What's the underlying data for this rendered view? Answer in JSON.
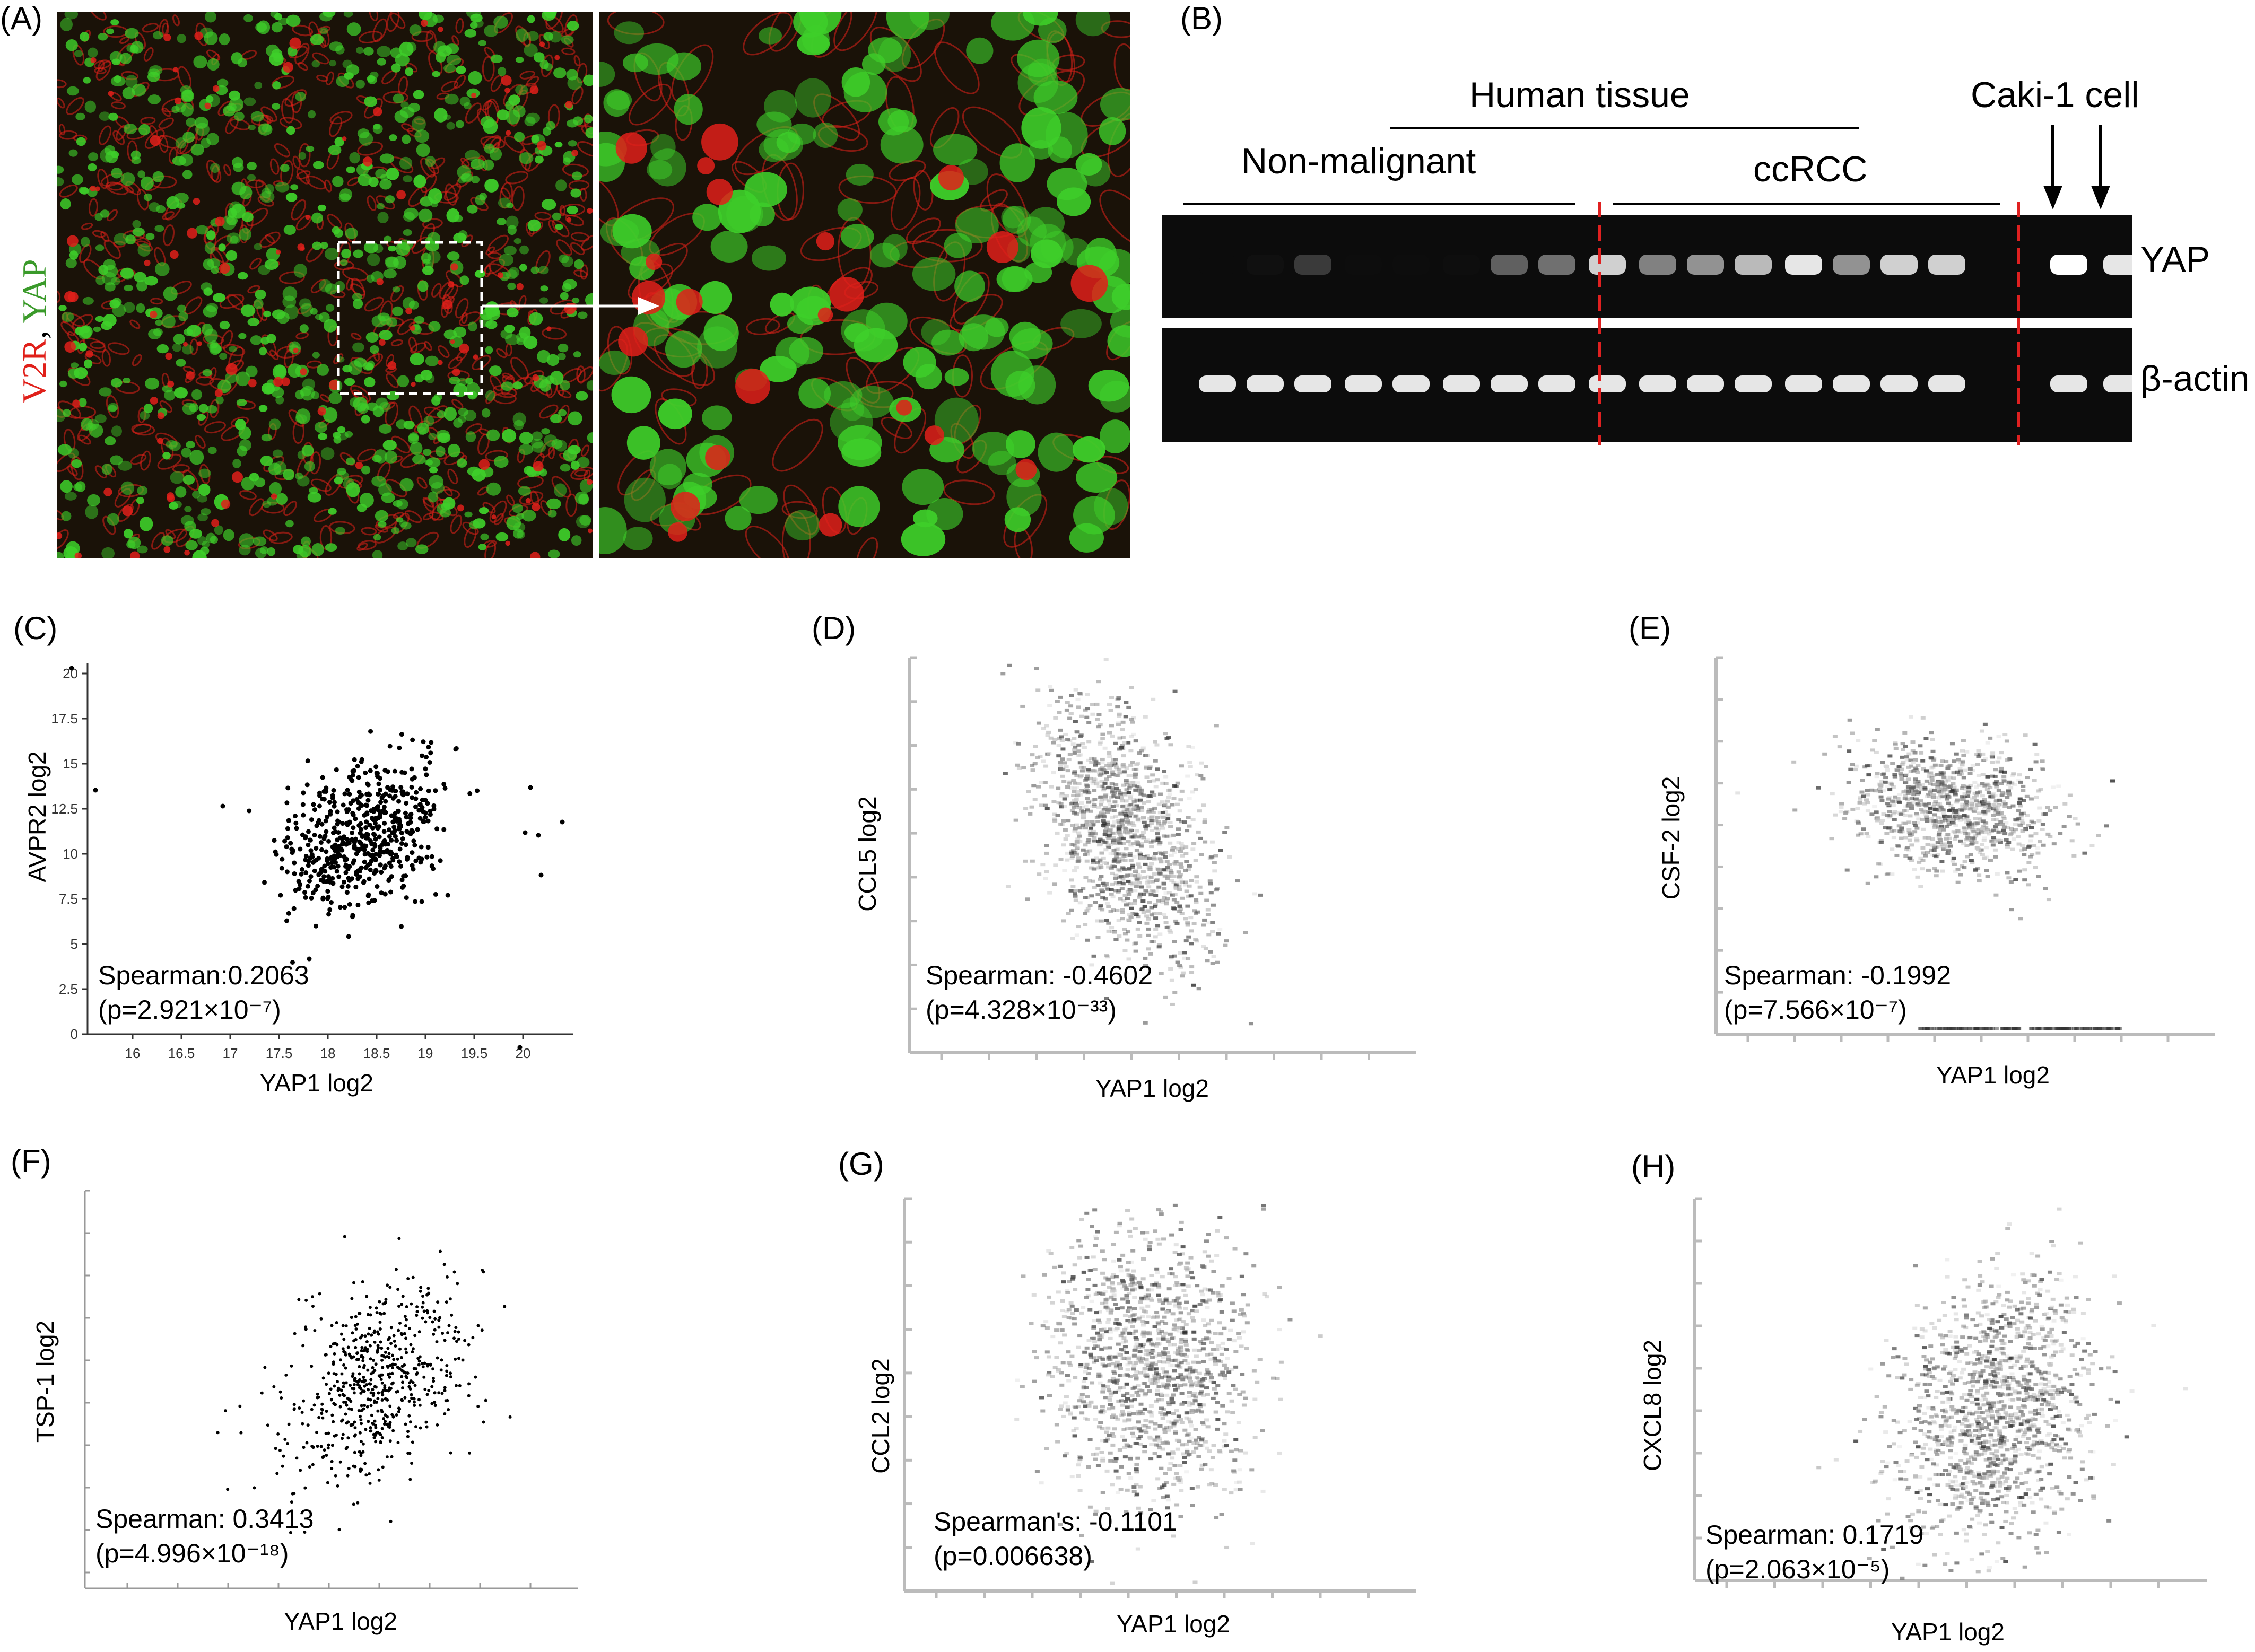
{
  "panels": {
    "A": {
      "label": "(A)",
      "stain_red": "V2R",
      "stain_sep": ", ",
      "stain_green": "YAP",
      "colors": {
        "red": "#e0201a",
        "green": "#3ecf2a",
        "bg": "#1a1208"
      }
    },
    "B": {
      "label": "(B)",
      "human_tissue": "Human tissue",
      "non_malignant": "Non-malignant",
      "ccrcc": "ccRCC",
      "caki": "Caki-1 cell",
      "yap": "YAP",
      "actin": "β-actin",
      "yap_band_intensity": [
        0.05,
        0.15,
        0.45,
        0.08,
        0.08,
        0.1,
        0.6,
        0.65,
        0.9,
        0.7,
        0.75,
        0.85,
        0.95,
        0.75,
        0.9,
        0.9,
        1.0,
        0.95
      ],
      "actin_band_intensity": [
        0.95,
        0.95,
        0.95,
        0.95,
        0.95,
        0.95,
        0.95,
        0.95,
        0.95,
        0.95,
        0.95,
        0.95,
        0.95,
        0.95,
        0.95,
        0.95,
        0.95,
        0.95
      ]
    },
    "C": {
      "label": "(C)",
      "ylabel": "AVPR2 log2",
      "xlabel": "YAP1 log2",
      "stat": "Spearman:0.2063",
      "pval": "(p=2.921×10⁻⁷)",
      "yticks": [
        "0",
        "2.5",
        "5",
        "7.5",
        "10",
        "12.5",
        "15",
        "17.5",
        "20"
      ],
      "xticks": [
        "16",
        "16.5",
        "17",
        "17.5",
        "18",
        "18.5",
        "19",
        "19.5",
        "20"
      ]
    },
    "D": {
      "label": "(D)",
      "ylabel": "CCL5 log2",
      "xlabel": "YAP1 log2",
      "stat": "Spearman: -0.4602",
      "pval": "(p=4.328×10⁻³³)"
    },
    "E": {
      "label": "(E)",
      "ylabel": "CSF-2 log2",
      "xlabel": "YAP1 log2",
      "stat": "Spearman: -0.1992",
      "pval": "(p=7.566×10⁻⁷)"
    },
    "F": {
      "label": "(F)",
      "ylabel": "TSP-1 log2",
      "xlabel": "YAP1 log2",
      "stat": "Spearman: 0.3413",
      "pval": "(p=4.996×10⁻¹⁸)"
    },
    "G": {
      "label": "(G)",
      "ylabel": "CCL2 log2",
      "xlabel": "YAP1 log2",
      "stat": "Spearman's: -0.1101",
      "pval": "(p=0.006638)"
    },
    "H": {
      "label": "(H)",
      "ylabel": "CXCL8 log2",
      "xlabel": "YAP1 log2",
      "stat": "Spearman: 0.1719",
      "pval": "(p=2.063×10⁻⁵)"
    }
  }
}
